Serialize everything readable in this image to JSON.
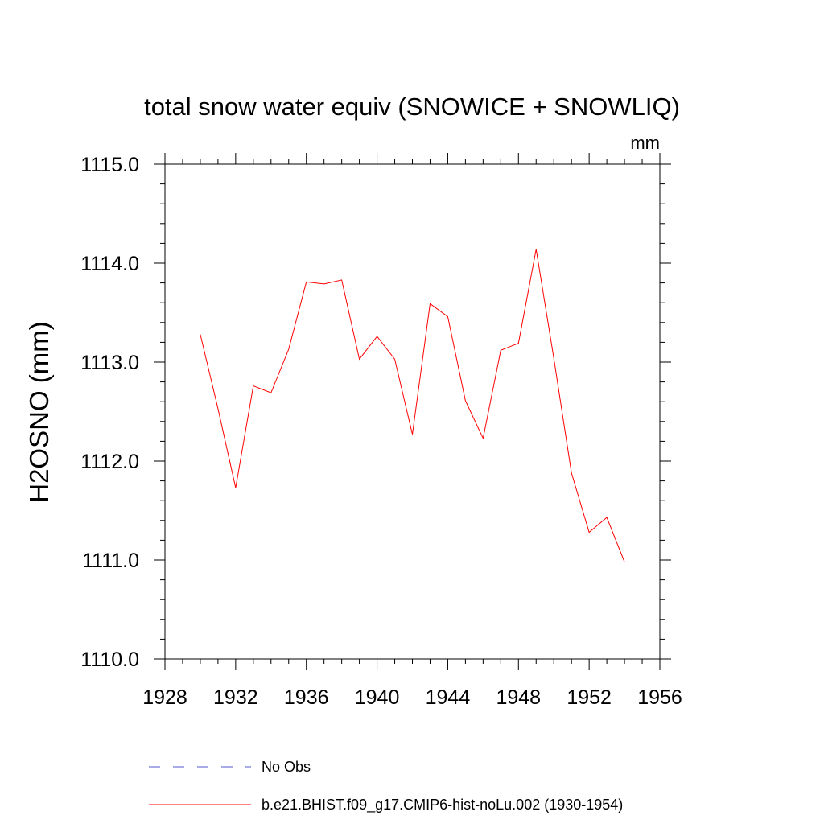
{
  "chart_data": {
    "type": "line",
    "title": "total snow water equiv (SNOWICE + SNOWLIQ)",
    "units": "mm",
    "xlabel": "",
    "ylabel": "H2OSNO  (mm)",
    "xlim": [
      1928,
      1956
    ],
    "ylim": [
      1110.0,
      1115.0
    ],
    "x_ticks": [
      "1928",
      "1932",
      "1936",
      "1940",
      "1944",
      "1948",
      "1952",
      "1956"
    ],
    "y_ticks": [
      "1110.0",
      "1111.0",
      "1112.0",
      "1113.0",
      "1114.0",
      "1115.0"
    ],
    "grid": false,
    "legend_position": "bottom",
    "series": [
      {
        "name": "No Obs",
        "style": "dashed",
        "color": "#5555cc",
        "x": [],
        "values": []
      },
      {
        "name": "b.e21.BHIST.f09_g17.CMIP6-hist-noLu.002 (1930-1954)",
        "style": "solid",
        "color": "#ff0000",
        "x": [
          1930,
          1931,
          1932,
          1933,
          1934,
          1935,
          1936,
          1937,
          1938,
          1939,
          1940,
          1941,
          1942,
          1943,
          1944,
          1945,
          1946,
          1947,
          1948,
          1949,
          1950,
          1951,
          1952,
          1953,
          1954
        ],
        "values": [
          1113.28,
          1112.53,
          1111.73,
          1112.76,
          1112.69,
          1113.13,
          1113.81,
          1113.79,
          1113.83,
          1113.03,
          1113.26,
          1113.03,
          1112.27,
          1113.59,
          1113.46,
          1112.61,
          1112.23,
          1113.12,
          1113.19,
          1114.14,
          1113.04,
          1111.88,
          1111.28,
          1111.43,
          1110.98
        ]
      }
    ]
  }
}
